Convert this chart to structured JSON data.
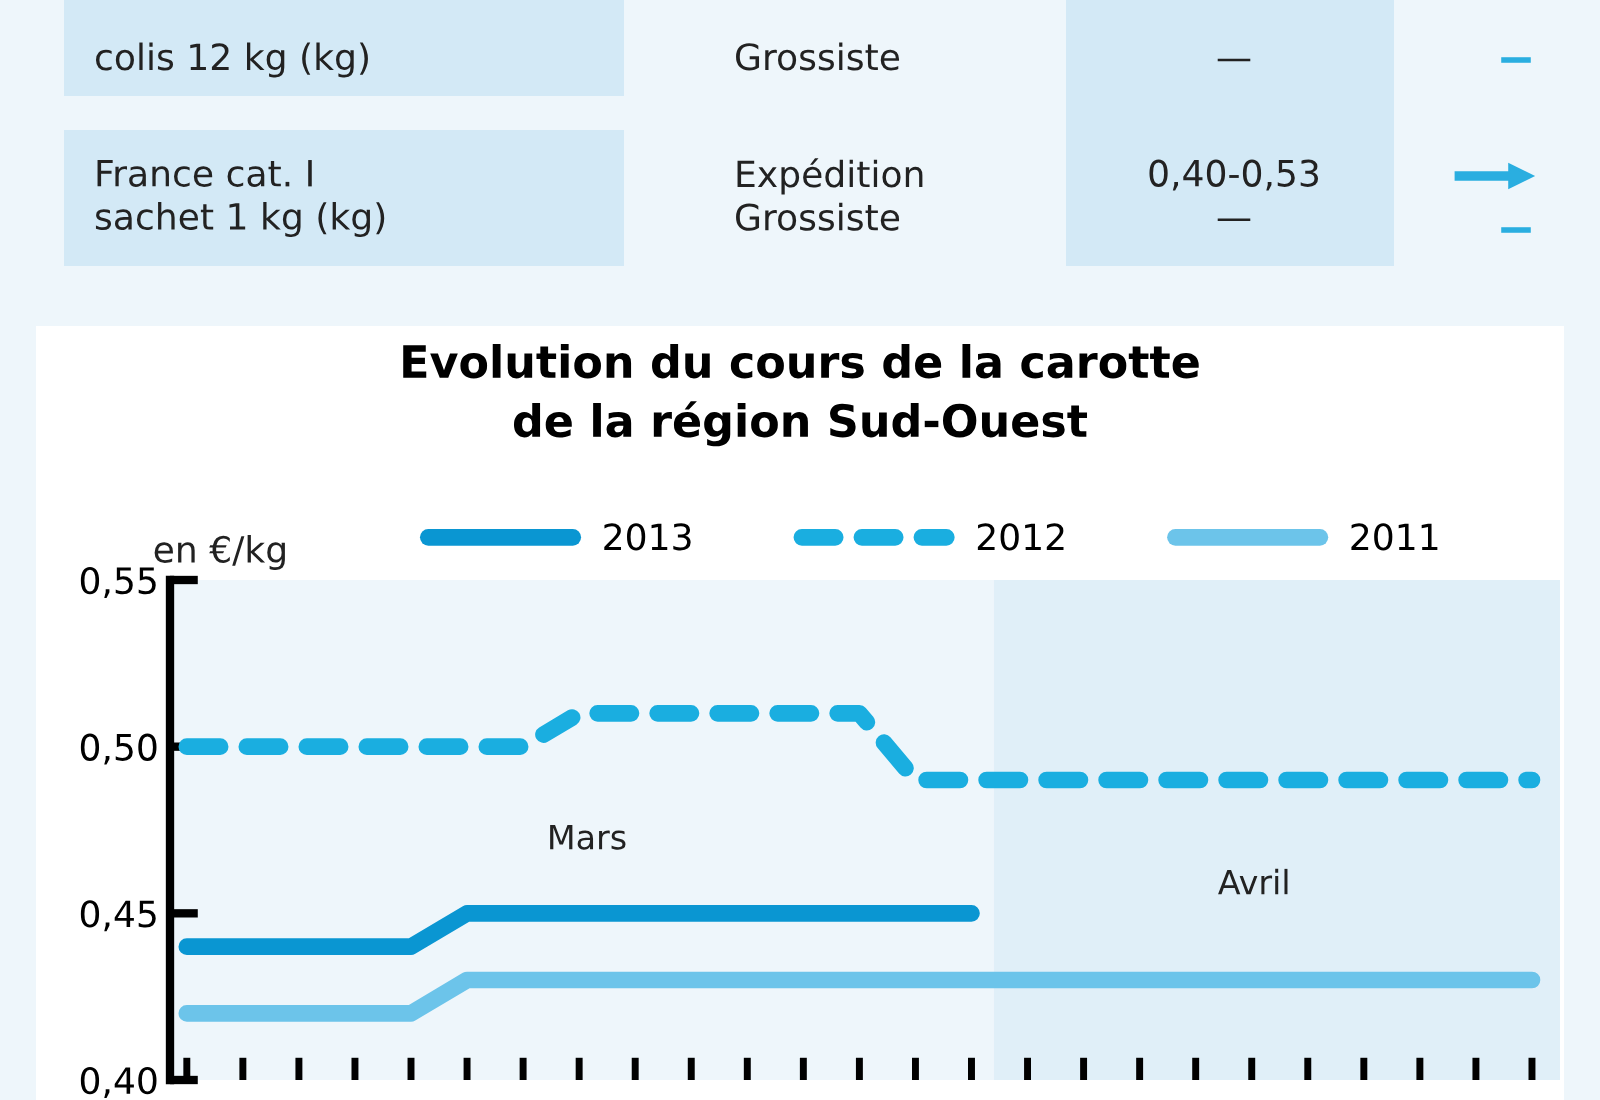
{
  "chart_data": {
    "type": "line",
    "title": "Evolution du cours de la carotte\nde la région Sud-Ouest",
    "ylabel": "en €/kg",
    "categories": [
      null,
      null,
      null,
      null,
      null,
      null,
      null,
      null,
      null,
      null,
      null,
      null,
      null,
      null,
      null,
      null,
      null,
      null,
      null,
      null,
      null,
      null,
      null,
      null,
      null
    ],
    "series": [
      {
        "name": "2013",
        "color": "#0a96d2",
        "line_style": "solid",
        "values": [
          0.44,
          0.44,
          0.44,
          0.44,
          0.44,
          0.45,
          0.45,
          0.45,
          0.45,
          0.45,
          0.45,
          0.45,
          0.45,
          0.45,
          0.45,
          null,
          null,
          null,
          null,
          null,
          null,
          null,
          null,
          null,
          null
        ]
      },
      {
        "name": "2012",
        "color": "#1aaee0",
        "line_style": "dashed",
        "values": [
          0.5,
          0.5,
          0.5,
          0.5,
          0.5,
          0.5,
          0.5,
          0.51,
          0.51,
          0.51,
          0.51,
          0.51,
          0.51,
          0.49,
          0.49,
          0.49,
          0.49,
          0.49,
          0.49,
          0.49,
          0.49,
          0.49,
          0.49,
          0.49,
          0.49
        ]
      },
      {
        "name": "2011",
        "color": "#6cc4ea",
        "line_style": "solid",
        "values": [
          0.42,
          0.42,
          0.42,
          0.42,
          0.42,
          0.43,
          0.43,
          0.43,
          0.43,
          0.43,
          0.43,
          0.43,
          0.43,
          0.43,
          0.43,
          0.43,
          0.43,
          0.43,
          0.43,
          0.43,
          0.43,
          0.43,
          0.43,
          0.43,
          0.43
        ]
      }
    ],
    "ylim": [
      0.4,
      0.55
    ],
    "yticks": [
      {
        "value": 0.4,
        "label": "0,40"
      },
      {
        "value": 0.45,
        "label": "0,45"
      },
      {
        "value": 0.5,
        "label": "0,50"
      },
      {
        "value": 0.55,
        "label": "0,55"
      }
    ],
    "tick_labels": "y",
    "grid": false,
    "legend": "top",
    "marker": "none",
    "annotations": [
      "colis 12 kg (kg)",
      "Grossiste",
      "—",
      "France cat. I\nsachet 1 kg (kg)",
      "Expédition\nGrossiste",
      "0,40-0,53\n—",
      "Mars",
      "Avril"
    ]
  }
}
